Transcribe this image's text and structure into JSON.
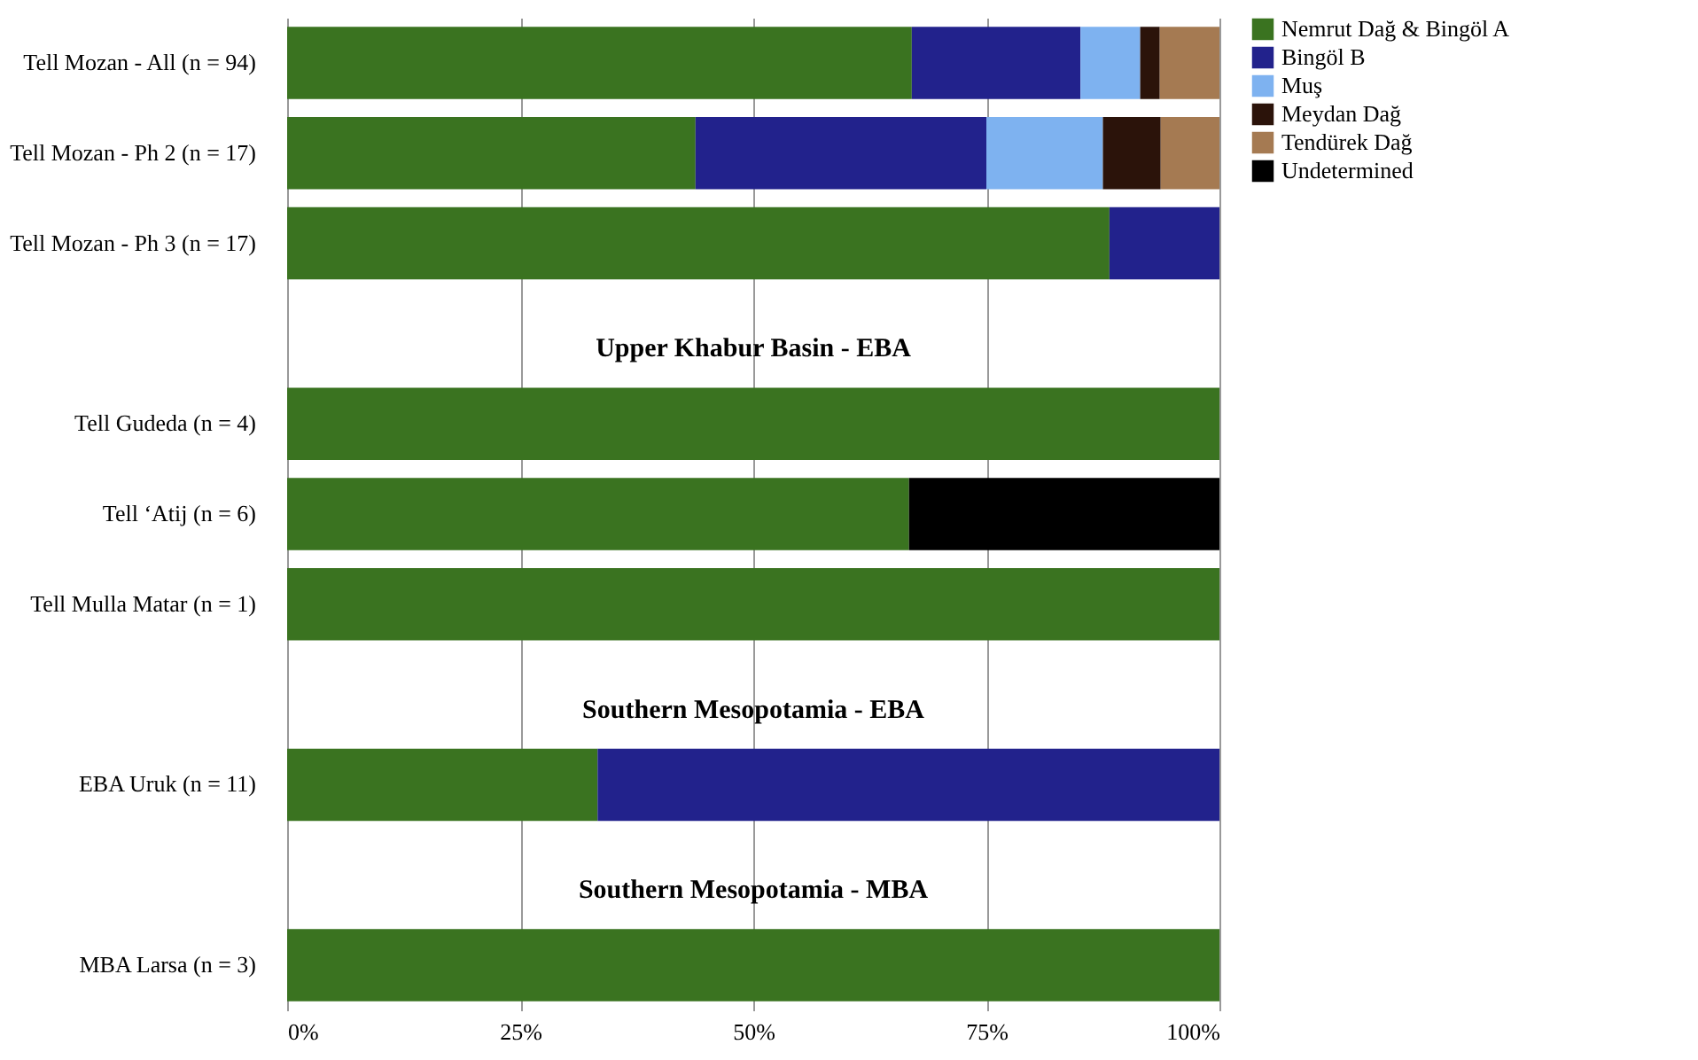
{
  "chart_data": {
    "type": "bar",
    "orientation": "horizontal",
    "stacked": true,
    "categories": [
      "Tell Mozan - All (n = 94)",
      "Tell Mozan - Ph 2 (n = 17)",
      "Tell Mozan - Ph 3 (n = 17)",
      null,
      "Tell Gudeda (n = 4)",
      "Tell ‘Atij (n = 6)",
      "Tell Mulla Matar (n = 1)",
      null,
      "EBA Uruk (n = 11)",
      null,
      "MBA Larsa (n = 3)"
    ],
    "series": [
      {
        "name": "Nemrut Dağ & Bingöl A",
        "color": "#3a7320",
        "values": [
          67,
          43.8,
          88.2,
          null,
          100,
          66.7,
          100,
          null,
          33.3,
          null,
          100
        ]
      },
      {
        "name": "Bingöl B",
        "color": "#22228c",
        "values": [
          18.1,
          31.2,
          11.8,
          null,
          0,
          0,
          0,
          null,
          66.7,
          null,
          0
        ]
      },
      {
        "name": "Muş",
        "color": "#7eb2f0",
        "values": [
          6.4,
          12.5,
          0,
          null,
          0,
          0,
          0,
          null,
          0,
          null,
          0
        ]
      },
      {
        "name": "Meydan Dağ",
        "color": "#2b130a",
        "values": [
          2.1,
          6.2,
          0,
          null,
          0,
          0,
          0,
          null,
          0,
          null,
          0
        ]
      },
      {
        "name": "Tendürek Dağ",
        "color": "#a57a52",
        "values": [
          6.4,
          6.3,
          0,
          null,
          0,
          0,
          0,
          null,
          0,
          null,
          0
        ]
      },
      {
        "name": "Undetermined",
        "color": "#000000",
        "values": [
          0,
          0,
          0,
          null,
          0,
          33.3,
          0,
          null,
          0,
          null,
          0
        ]
      }
    ],
    "annotations": [
      "Upper Khabur Basin - EBA",
      "Southern Mesopotamia - EBA",
      "Southern Mesopotamia - MBA"
    ],
    "xlim": [
      0,
      100
    ],
    "xticks": [
      {
        "value": 0,
        "label": "0%"
      },
      {
        "value": 25,
        "label": "25%"
      },
      {
        "value": 50,
        "label": "50%"
      },
      {
        "value": 75,
        "label": "75%"
      },
      {
        "value": 100,
        "label": "100%"
      }
    ],
    "grid": "x",
    "legend": "right"
  }
}
